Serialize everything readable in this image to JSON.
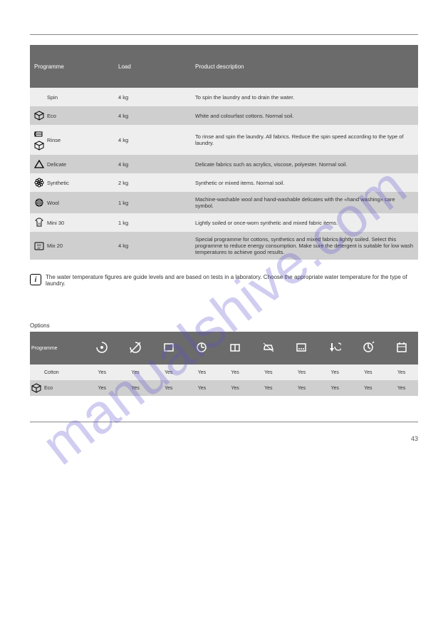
{
  "watermark": "manualshive.com",
  "page_number": "43",
  "table1": {
    "header": {
      "c1": "Programme",
      "c2": "Load",
      "c3": "Product description"
    },
    "rows": [
      {
        "shade": "light",
        "icon": null,
        "name": "Spin",
        "load": "4 kg",
        "desc": "To spin the laundry and to drain the water."
      },
      {
        "shade": "dark",
        "icon": "cube",
        "name": "Eco",
        "load": "4 kg",
        "desc": "White and colourfast cottons. Normal soil."
      },
      {
        "shade": "light",
        "icon": "rinse-cube",
        "name": "Rinse",
        "load": "4 kg",
        "desc": "To rinse and spin the laundry. All fabrics. Reduce the spin speed according to the type of laundry."
      },
      {
        "shade": "dark",
        "icon": "triangle",
        "name": "Delicate",
        "load": "4 kg",
        "desc": "Delicate fabrics such as acrylics, viscose, polyester. Normal soil."
      },
      {
        "shade": "light",
        "icon": "flower",
        "name": "Synthetic",
        "load": "2 kg",
        "desc": "Synthetic or mixed items. Normal soil."
      },
      {
        "shade": "dark",
        "icon": "wool",
        "name": "Wool",
        "load": "1 kg",
        "desc": "Machine-washable wool and hand-washable delicates with the «hand washing» care symbol."
      },
      {
        "shade": "light",
        "icon": "shirt20",
        "name": "Mini 30",
        "load": "1 kg",
        "desc": "Lightly soiled or once-worn synthetic and mixed fabric items."
      },
      {
        "shade": "dark",
        "icon": "mix20",
        "name": "Mix 20",
        "load": "4 kg",
        "desc": "Special programme for cottons, synthetics and mixed fabrics lightly soiled. Select this programme to reduce energy consumption. Make sure the detergent is suitable for low wash temperatures to achieve good results."
      }
    ]
  },
  "note": "The water temperature figures are guide levels and are based on tests in a laboratory. Choose the appropriate water temperature for the type of laundry.",
  "table2": {
    "options_label": "Options",
    "header_icons": [
      "spin",
      "nospin",
      "rinsehold",
      "prewash",
      "rinseplus",
      "easyiron",
      "soak",
      "drainspin",
      "delay",
      "timemgr"
    ],
    "header_first": "Programme",
    "rows": [
      {
        "shade": "light",
        "icon": null,
        "name": "Cotton",
        "cells": [
          "Yes",
          "Yes",
          "Yes",
          "Yes",
          "Yes",
          "Yes",
          "Yes",
          "Yes",
          "Yes",
          "Yes"
        ]
      },
      {
        "shade": "dark",
        "icon": "cube",
        "name": "Eco",
        "cells": [
          "Yes",
          "Yes",
          "Yes",
          "Yes",
          "Yes",
          "Yes",
          "Yes",
          "Yes",
          "Yes",
          "Yes"
        ]
      }
    ]
  },
  "colors": {
    "header_bg": "#6b6b6b",
    "row_light": "#eeeeee",
    "row_dark": "#cfcfcf",
    "watermark": "#5a4fcf"
  }
}
